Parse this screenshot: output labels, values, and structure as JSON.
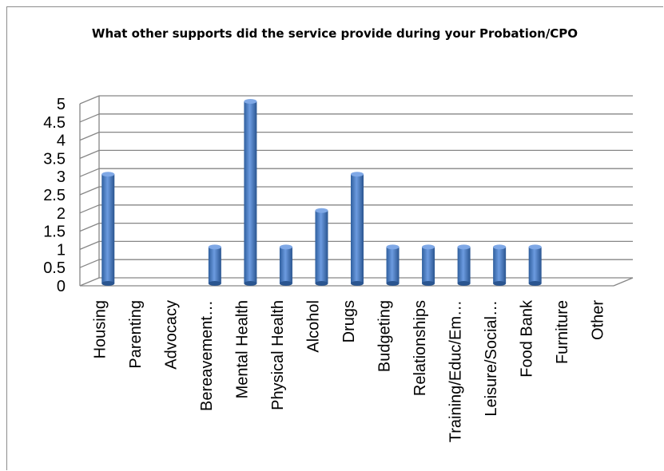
{
  "chart_data": {
    "type": "bar",
    "title": "What other supports did the service provide during your Probation/CPO",
    "xlabel": "",
    "ylabel": "",
    "ylim": [
      0,
      5
    ],
    "yticks": [
      "0",
      "0.5",
      "1",
      "1.5",
      "2",
      "2.5",
      "3",
      "3.5",
      "4",
      "4.5",
      "5"
    ],
    "categories": [
      "Housing",
      "Parenting",
      "Advocacy",
      "Bereavement…",
      "Mental Health",
      "Physical Health",
      "Alcohol",
      "Drugs",
      "Budgeting",
      "Relationships",
      "Training/Educ/Em…",
      "Leisure/Social…",
      "Food Bank",
      "Furniture",
      "Other"
    ],
    "values": [
      3,
      0,
      0,
      1,
      5,
      1,
      2,
      3,
      1,
      1,
      1,
      1,
      1,
      0,
      0
    ],
    "bar_color": "#4f81bd",
    "grid": true,
    "legend": "none"
  }
}
